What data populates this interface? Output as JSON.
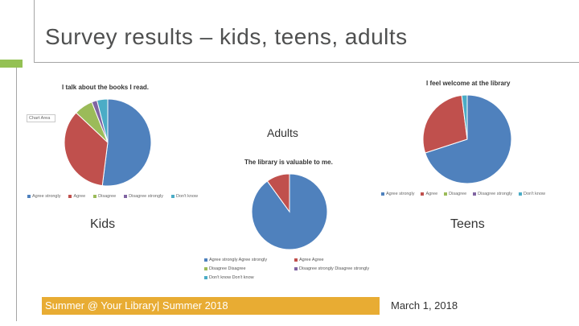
{
  "slide": {
    "title": "Survey results – kids, teens, adults",
    "accent_color": "#94c154",
    "footer_text": "Summer @ Your Library| Summer 2018",
    "footer_color": "#e8ac33",
    "date": "March 1, 2018"
  },
  "labels": {
    "kids": "Kids",
    "teens": "Teens",
    "adults": "Adults"
  },
  "chart_area_tag": "Chart Area",
  "chart_data": [
    {
      "type": "pie",
      "id": "kids",
      "title": "I talk about the books I read.",
      "categories": [
        "Agree strongly",
        "Agree",
        "Disagree",
        "Disagree strongly",
        "Don't know"
      ],
      "values": [
        52,
        35,
        7,
        2,
        4
      ],
      "colors": [
        "#4f81bd",
        "#c0504d",
        "#9bbb59",
        "#8064a2",
        "#4bacc6"
      ]
    },
    {
      "type": "pie",
      "id": "adults",
      "title": "The library is valuable to me.",
      "categories": [
        "Agree strongly Agree strongly",
        "Agree Agree",
        "Disagree Disagree",
        "Disagree strongly Disagree strongly",
        "Don't know Don't know"
      ],
      "values": [
        90,
        10,
        0,
        0,
        0
      ],
      "colors": [
        "#4f81bd",
        "#c0504d",
        "#9bbb59",
        "#8064a2",
        "#4bacc6"
      ]
    },
    {
      "type": "pie",
      "id": "teens",
      "title": "I feel welcome at the library",
      "categories": [
        "Agree strongly",
        "Agree",
        "Disagree",
        "Disagree strongly",
        "Don't know"
      ],
      "values": [
        70,
        28,
        0,
        0,
        2
      ],
      "colors": [
        "#4f81bd",
        "#c0504d",
        "#9bbb59",
        "#8064a2",
        "#4bacc6"
      ]
    }
  ]
}
